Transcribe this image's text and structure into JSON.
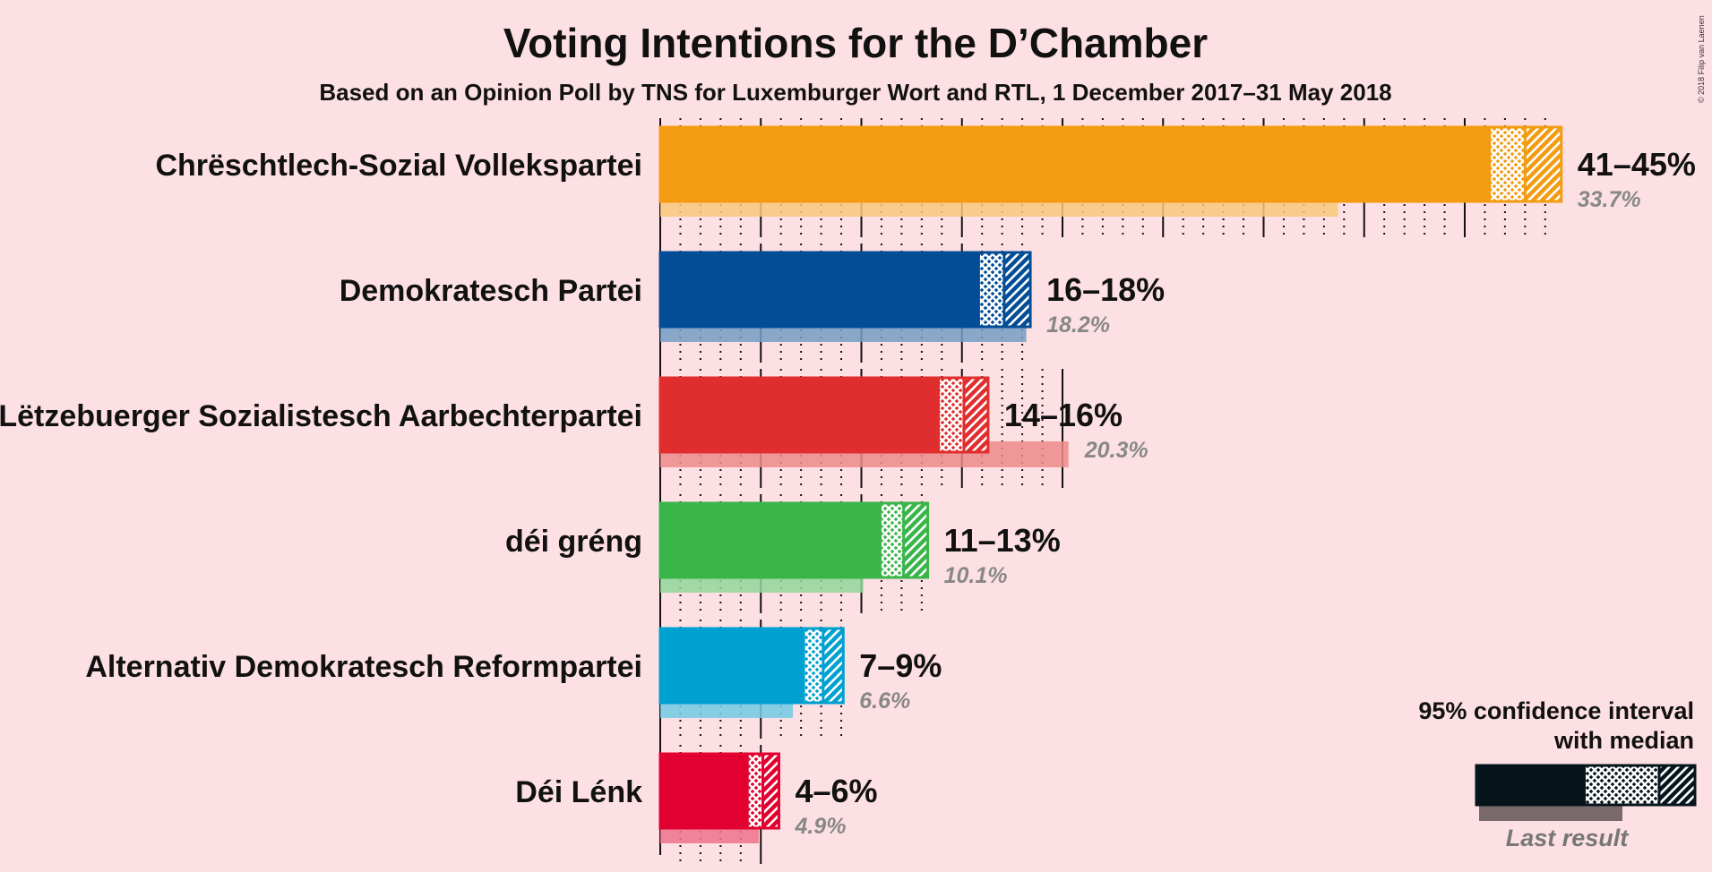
{
  "title": "Voting Intentions for the D’Chamber",
  "subtitle": "Based on an Opinion Poll by TNS for Luxemburger Wort and RTL, 1 December 2017–31 May 2018",
  "copyright": "© 2018 Filip van Laenen",
  "legend": {
    "ci_line1": "95% confidence interval",
    "ci_line2": "with median",
    "last_result": "Last result"
  },
  "chart_data": {
    "type": "bar",
    "orientation": "horizontal",
    "title": "Voting Intentions for the D’Chamber",
    "subtitle": "Based on an Opinion Poll by TNS for Luxemburger Wort and RTL, 1 December 2017–31 May 2018",
    "grid": true,
    "xlim": [
      0,
      46
    ],
    "parties": [
      {
        "name": "Chrëschtlech-Sozial Vollekspartei",
        "color": "#f39c12",
        "low": 41.3,
        "median": 43.0,
        "high": 44.8,
        "label": "41–45%",
        "last": 33.7,
        "last_label": "33.7%"
      },
      {
        "name": "Demokratesch Partei",
        "color": "#034d96",
        "low": 15.9,
        "median": 17.1,
        "high": 18.4,
        "label": "16–18%",
        "last": 18.2,
        "last_label": "18.2%"
      },
      {
        "name": "Lëtzebuerger Sozialistesch Aarbechterpartei",
        "color": "#e02e2e",
        "low": 13.9,
        "median": 15.1,
        "high": 16.3,
        "label": "14–16%",
        "last": 20.3,
        "last_label": "20.3%"
      },
      {
        "name": "déi gréng",
        "color": "#3ab54a",
        "low": 11.0,
        "median": 12.1,
        "high": 13.3,
        "label": "11–13%",
        "last": 10.1,
        "last_label": "10.1%"
      },
      {
        "name": "Alternativ Demokratesch Reformpartei",
        "color": "#00a0d1",
        "low": 7.2,
        "median": 8.1,
        "high": 9.1,
        "label": "7–9%",
        "last": 6.6,
        "last_label": "6.6%"
      },
      {
        "name": "Déi Lénk",
        "color": "#e1002f",
        "low": 4.4,
        "median": 5.1,
        "high": 5.9,
        "label": "4–6%",
        "last": 4.9,
        "last_label": "4.9%"
      }
    ]
  }
}
